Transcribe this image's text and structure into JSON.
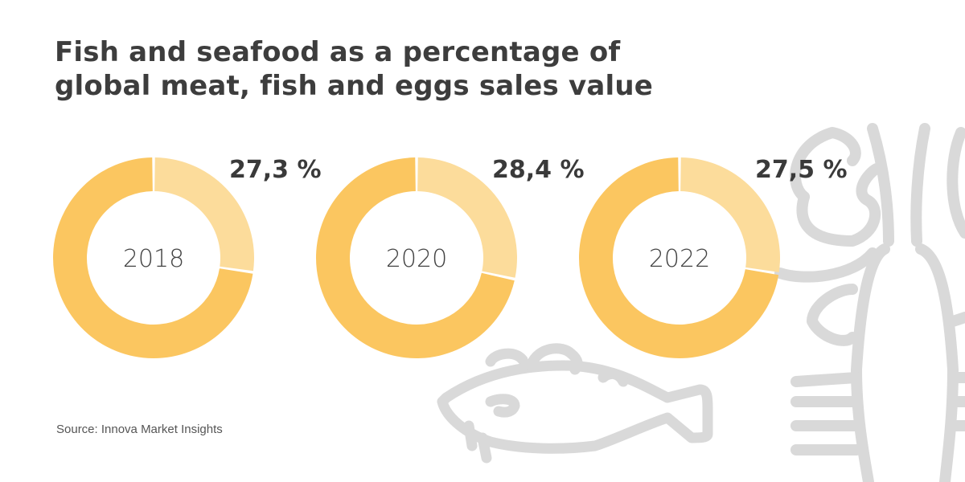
{
  "title_line1": "Fish and seafood as a percentage of",
  "title_line2": "global meat, fish and eggs sales value",
  "source": "Source: Innova Market Insights",
  "chart_data": [
    {
      "type": "pie",
      "donut": true,
      "center_label": "2018",
      "label": "27,3 %",
      "values": [
        27.3,
        72.7
      ],
      "colors": [
        "#fcdc9b",
        "#fbc660"
      ]
    },
    {
      "type": "pie",
      "donut": true,
      "center_label": "2020",
      "label": "28,4 %",
      "values": [
        28.4,
        71.6
      ],
      "colors": [
        "#fcdc9b",
        "#fbc660"
      ]
    },
    {
      "type": "pie",
      "donut": true,
      "center_label": "2022",
      "label": "27,5 %",
      "values": [
        27.5,
        72.5
      ],
      "colors": [
        "#fcdc9b",
        "#fbc660"
      ]
    }
  ],
  "icons": [
    "fish-icon",
    "lobster-icon"
  ],
  "colors": {
    "highlight": "#fcdc9b",
    "rest": "#fbc660",
    "illustration": "#d9d9d9",
    "text": "#3d3d3d"
  }
}
